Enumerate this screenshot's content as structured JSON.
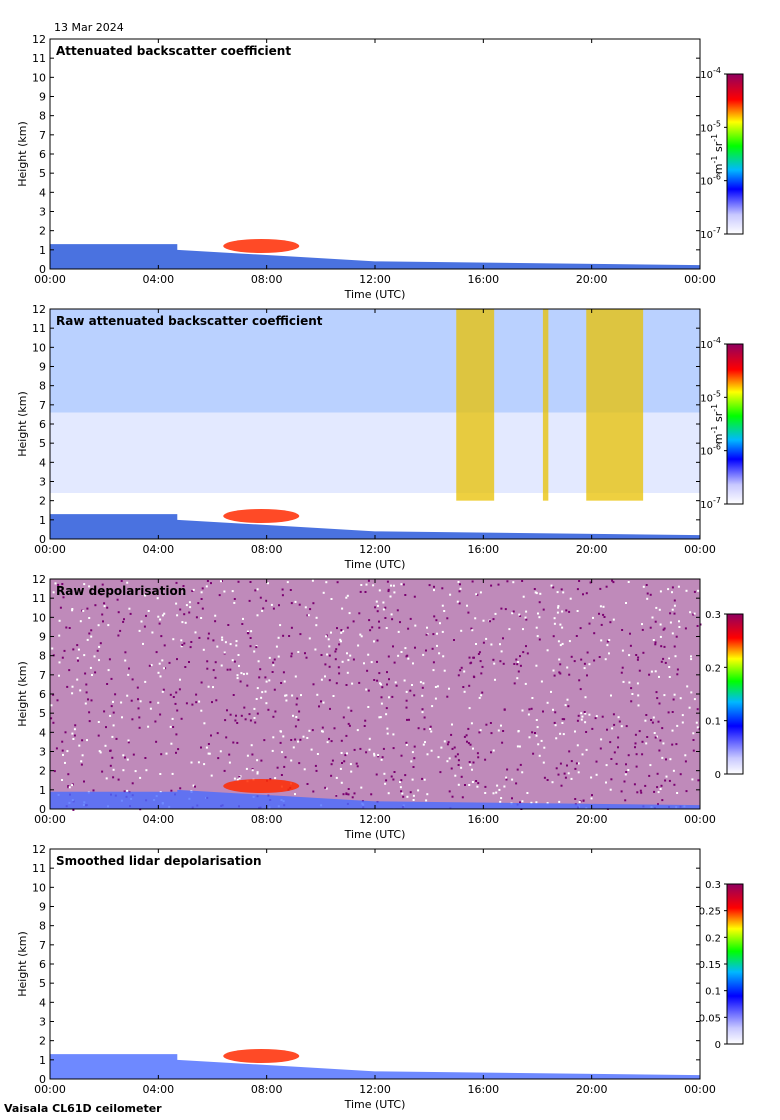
{
  "header": {
    "date": "13 Mar 2024"
  },
  "footer": {
    "instrument": "Vaisala CL61D ceilometer"
  },
  "chart_data": [
    {
      "type": "heatmap",
      "title": "Attenuated backscatter coefficient",
      "xlabel": "Time (UTC)",
      "ylabel": "Height (km)",
      "x_ticks": [
        "00:00",
        "04:00",
        "08:00",
        "12:00",
        "16:00",
        "20:00",
        "00:00"
      ],
      "y_ticks": [
        "0",
        "1",
        "2",
        "3",
        "4",
        "5",
        "6",
        "7",
        "8",
        "9",
        "10",
        "11",
        "12"
      ],
      "xlim_hours": [
        0,
        24
      ],
      "ylim_km": [
        0,
        12
      ],
      "colorbar": {
        "scale": "log",
        "range": [
          1e-07,
          0.0001
        ],
        "ticks": [
          {
            "base": "10",
            "exp": "-4",
            "value": 0.0001
          },
          {
            "base": "10",
            "exp": "-5",
            "value": 1e-05
          },
          {
            "base": "10",
            "exp": "-6",
            "value": 1e-06
          },
          {
            "base": "10",
            "exp": "-7",
            "value": 1e-07
          }
        ],
        "unit": {
          "m": "m",
          "m_exp": "-1",
          "sr": "sr",
          "sr_exp": "-1"
        }
      }
    },
    {
      "type": "heatmap",
      "title": "Raw attenuated backscatter coefficient",
      "xlabel": "Time (UTC)",
      "ylabel": "Height (km)",
      "x_ticks": [
        "00:00",
        "04:00",
        "08:00",
        "12:00",
        "16:00",
        "20:00",
        "00:00"
      ],
      "y_ticks": [
        "0",
        "1",
        "2",
        "3",
        "4",
        "5",
        "6",
        "7",
        "8",
        "9",
        "10",
        "11",
        "12"
      ],
      "xlim_hours": [
        0,
        24
      ],
      "ylim_km": [
        0,
        12
      ],
      "colorbar": {
        "scale": "log",
        "range": [
          1e-07,
          0.0001
        ],
        "ticks": [
          {
            "base": "10",
            "exp": "-4",
            "value": 0.0001
          },
          {
            "base": "10",
            "exp": "-5",
            "value": 1e-05
          },
          {
            "base": "10",
            "exp": "-6",
            "value": 1e-06
          },
          {
            "base": "10",
            "exp": "-7",
            "value": 1e-07
          }
        ],
        "unit": {
          "m": "m",
          "m_exp": "-1",
          "sr": "sr",
          "sr_exp": "-1"
        }
      }
    },
    {
      "type": "heatmap",
      "title": "Raw depolarisation",
      "xlabel": "Time (UTC)",
      "ylabel": "Height (km)",
      "x_ticks": [
        "00:00",
        "04:00",
        "08:00",
        "12:00",
        "16:00",
        "20:00",
        "00:00"
      ],
      "y_ticks": [
        "0",
        "1",
        "2",
        "3",
        "4",
        "5",
        "6",
        "7",
        "8",
        "9",
        "10",
        "11",
        "12"
      ],
      "xlim_hours": [
        0,
        24
      ],
      "ylim_km": [
        0,
        12
      ],
      "colorbar": {
        "scale": "linear",
        "range": [
          0,
          0.3
        ],
        "ticks": [
          {
            "label": "0.3",
            "value": 0.3
          },
          {
            "label": "0.2",
            "value": 0.2
          },
          {
            "label": "0.1",
            "value": 0.1
          },
          {
            "label": "0",
            "value": 0
          }
        ]
      }
    },
    {
      "type": "heatmap",
      "title": "Smoothed lidar depolarisation",
      "xlabel": "Time (UTC)",
      "ylabel": "Height (km)",
      "x_ticks": [
        "00:00",
        "04:00",
        "08:00",
        "12:00",
        "16:00",
        "20:00",
        "00:00"
      ],
      "y_ticks": [
        "0",
        "1",
        "2",
        "3",
        "4",
        "5",
        "6",
        "7",
        "8",
        "9",
        "10",
        "11",
        "12"
      ],
      "xlim_hours": [
        0,
        24
      ],
      "ylim_km": [
        0,
        12
      ],
      "colorbar": {
        "scale": "linear",
        "range": [
          0,
          0.3
        ],
        "ticks": [
          {
            "label": "0.3",
            "value": 0.3
          },
          {
            "label": "0.25",
            "value": 0.25
          },
          {
            "label": "0.2",
            "value": 0.2
          },
          {
            "label": "0.15",
            "value": 0.15
          },
          {
            "label": "0.1",
            "value": 0.1
          },
          {
            "label": "0.05",
            "value": 0.05
          },
          {
            "label": "0",
            "value": 0
          }
        ]
      }
    }
  ]
}
